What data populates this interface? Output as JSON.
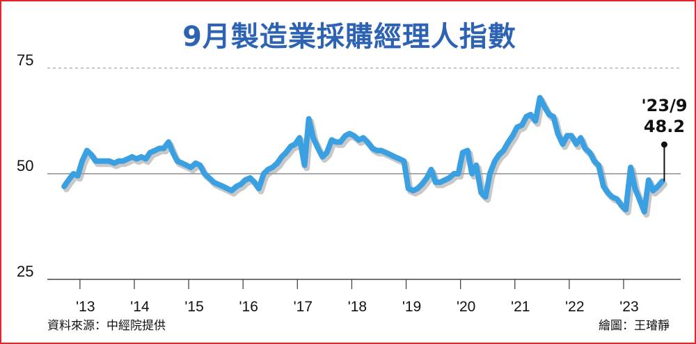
{
  "title": "9月製造業採購經理人指數",
  "source": "資料來源：中經院提供",
  "credit": "繪圖：王璿靜",
  "colors": {
    "line": "#3aa0e2",
    "shadow": "#9a9a9a",
    "title": "#2e63b4",
    "frame": "#e8232a",
    "axis": "#8c8c8c"
  },
  "chart_data": {
    "type": "line",
    "title": "9月製造業採購經理人指數",
    "ylim": [
      25,
      75
    ],
    "y_ticks": [
      "75",
      "50",
      "25"
    ],
    "y_tick_values": [
      75,
      50,
      25
    ],
    "x_ticks": [
      "'13",
      "'14",
      "'15",
      "'16",
      "'17",
      "'18",
      "'19",
      "'20",
      "'21",
      "'22",
      "'23"
    ],
    "x_tick_values": [
      2013,
      2014,
      2015,
      2016,
      2017,
      2018,
      2019,
      2020,
      2021,
      2022,
      2023
    ],
    "gridlines": [
      {
        "y": 75,
        "style": "dashed"
      },
      {
        "y": 50,
        "style": "solid"
      }
    ],
    "annotation": {
      "date_label": "'23/9",
      "value_label": "48.2",
      "x": 2023.71,
      "y": 48.2
    },
    "series": [
      {
        "x": [
          2012.71,
          2012.79,
          2012.88,
          2012.96,
          2013.04,
          2013.13,
          2013.21,
          2013.29,
          2013.38,
          2013.46,
          2013.54,
          2013.63,
          2013.71,
          2013.79,
          2013.88,
          2013.96,
          2014.04,
          2014.13,
          2014.21,
          2014.29,
          2014.38,
          2014.46,
          2014.54,
          2014.63,
          2014.71,
          2014.79,
          2014.88,
          2014.96,
          2015.04,
          2015.13,
          2015.21,
          2015.29,
          2015.38,
          2015.46,
          2015.54,
          2015.63,
          2015.71,
          2015.79,
          2015.88,
          2015.96,
          2016.04,
          2016.13,
          2016.21,
          2016.29,
          2016.38,
          2016.46,
          2016.54,
          2016.63,
          2016.71,
          2016.79,
          2016.88,
          2016.96,
          2017.04,
          2017.13,
          2017.21,
          2017.29,
          2017.38,
          2017.46,
          2017.54,
          2017.63,
          2017.71,
          2017.79,
          2017.88,
          2017.96,
          2018.04,
          2018.13,
          2018.21,
          2018.29,
          2018.38,
          2018.46,
          2018.54,
          2018.63,
          2018.71,
          2018.79,
          2018.88,
          2018.96,
          2019.04,
          2019.13,
          2019.21,
          2019.29,
          2019.38,
          2019.46,
          2019.54,
          2019.63,
          2019.71,
          2019.79,
          2019.88,
          2019.96,
          2020.04,
          2020.13,
          2020.21,
          2020.29,
          2020.38,
          2020.46,
          2020.54,
          2020.63,
          2020.71,
          2020.79,
          2020.88,
          2020.96,
          2021.04,
          2021.13,
          2021.21,
          2021.29,
          2021.38,
          2021.46,
          2021.54,
          2021.63,
          2021.71,
          2021.79,
          2021.88,
          2021.96,
          2022.04,
          2022.13,
          2022.21,
          2022.29,
          2022.38,
          2022.46,
          2022.54,
          2022.63,
          2022.71,
          2022.79,
          2022.88,
          2022.96,
          2023.04,
          2023.13,
          2023.21,
          2023.29,
          2023.38,
          2023.46,
          2023.54,
          2023.63,
          2023.71
        ],
        "values": [
          47.0,
          48.5,
          50.0,
          49.5,
          53.0,
          55.5,
          54.5,
          53.0,
          53.0,
          53.0,
          53.0,
          52.5,
          53.0,
          53.0,
          53.5,
          54.0,
          53.5,
          54.0,
          53.5,
          55.0,
          55.5,
          56.0,
          56.0,
          57.5,
          55.0,
          53.0,
          52.5,
          52.0,
          51.5,
          52.5,
          52.0,
          50.0,
          49.0,
          48.0,
          47.5,
          47.0,
          46.5,
          46.0,
          47.0,
          47.5,
          48.5,
          49.0,
          48.0,
          46.5,
          50.0,
          51.0,
          51.5,
          52.5,
          54.0,
          55.0,
          56.5,
          57.0,
          58.5,
          52.0,
          63.0,
          58.5,
          56.0,
          54.0,
          55.0,
          58.0,
          57.5,
          57.5,
          59.0,
          59.5,
          59.0,
          58.0,
          58.5,
          57.5,
          56.0,
          55.5,
          55.5,
          55.0,
          54.5,
          54.0,
          53.5,
          53.0,
          46.5,
          46.0,
          46.5,
          47.5,
          49.0,
          51.0,
          48.0,
          48.0,
          48.5,
          49.0,
          50.0,
          50.0,
          55.0,
          55.5,
          50.0,
          52.0,
          45.5,
          44.5,
          50.0,
          53.0,
          54.5,
          55.5,
          57.5,
          59.0,
          61.0,
          61.5,
          63.5,
          64.0,
          62.5,
          68.0,
          66.0,
          64.0,
          63.5,
          59.5,
          57.0,
          59.0,
          59.0,
          57.0,
          58.5,
          56.0,
          55.0,
          53.0,
          52.0,
          47.0,
          45.5,
          44.5,
          44.0,
          42.5,
          41.5,
          51.5,
          46.5,
          44.0,
          41.0,
          48.5,
          46.0,
          47.0,
          48.2
        ]
      }
    ]
  }
}
